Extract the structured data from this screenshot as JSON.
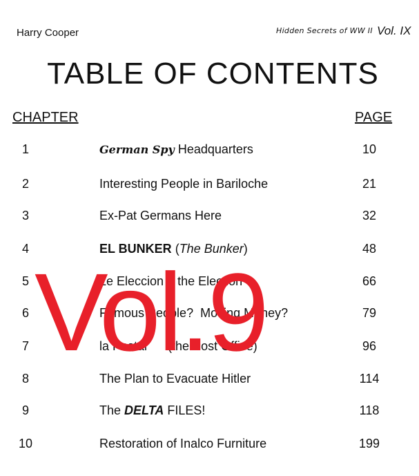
{
  "header": {
    "author": "Harry Cooper",
    "series": "Hidden Secrets of WW II",
    "volume": "Vol. IX"
  },
  "title": "TABLE OF CONTENTS",
  "columns": {
    "chapter": "CHAPTER",
    "page": "PAGE"
  },
  "chapters": [
    {
      "num": "1",
      "title_a": "German Spy",
      "title_b": " Headquarters",
      "page": "10"
    },
    {
      "num": "2",
      "title": "Interesting People in Bariloche",
      "page": "21"
    },
    {
      "num": "3",
      "title": "Ex-Pat Germans Here",
      "page": "32"
    },
    {
      "num": "4",
      "title_bold": "EL BUNKER",
      "title_rest_a": " (",
      "title_italic": "The Bunker",
      "title_rest_b": ")",
      "page": "48"
    },
    {
      "num": "5",
      "title": "Le Eleccion    the Election",
      "page": "66"
    },
    {
      "num": "6",
      "title": "Famous People?  Moving Money?",
      "page": "79"
    },
    {
      "num": "7",
      "title": "la Postal      (the Post Office)",
      "page": "96"
    },
    {
      "num": "8",
      "title": "The Plan to Evacuate Hitler",
      "page": "114"
    },
    {
      "num": "9",
      "title_a": "The ",
      "title_bi": "DELTA",
      "title_b": " FILES!",
      "page": "118"
    },
    {
      "num": "10",
      "title": "Restoration of Inalco Furniture",
      "page": "199"
    }
  ],
  "overlay": {
    "text": "Vol.9",
    "color": "#e8202a"
  }
}
